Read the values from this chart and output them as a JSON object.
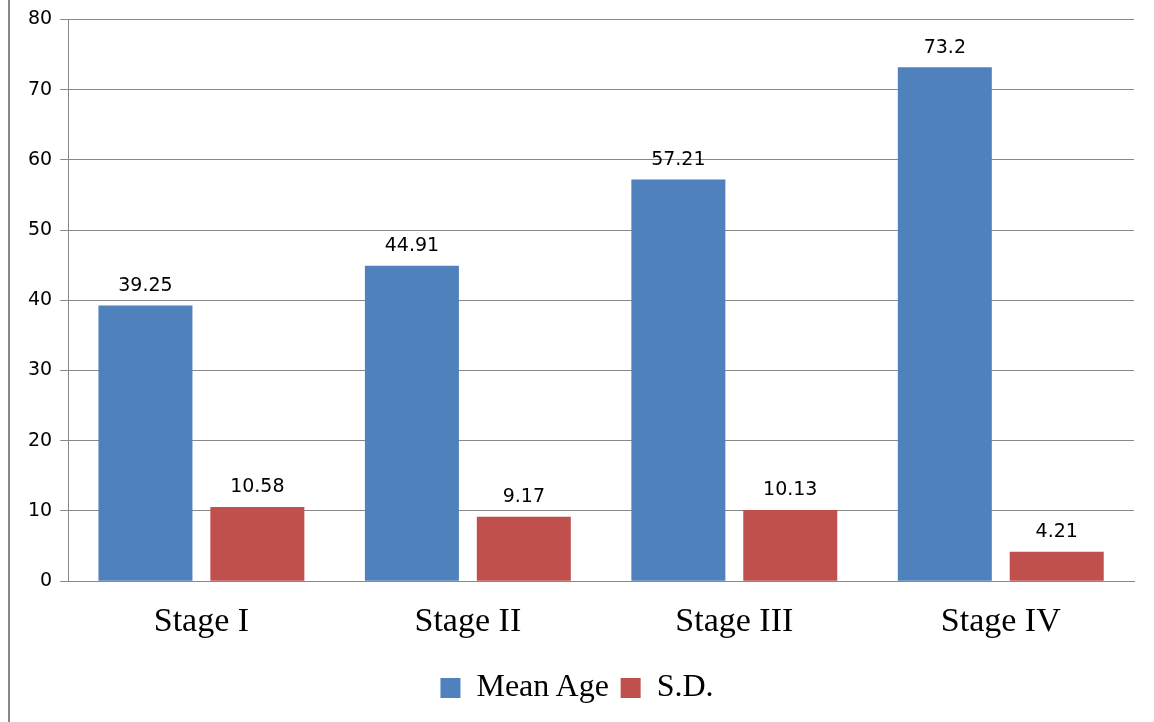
{
  "chart_data": {
    "type": "bar",
    "categories": [
      "Stage I",
      "Stage II",
      "Stage III",
      "Stage IV"
    ],
    "series": [
      {
        "name": "Mean Age",
        "color": "#4f81bd",
        "values": [
          39.25,
          44.91,
          57.21,
          73.2
        ]
      },
      {
        "name": "S.D.",
        "color": "#c0504d",
        "values": [
          10.58,
          9.17,
          10.13,
          4.21
        ]
      }
    ],
    "ylim": [
      0,
      80
    ],
    "yticks": [
      0,
      10,
      20,
      30,
      40,
      50,
      60,
      70,
      80
    ],
    "grid": "y",
    "legend": "bottom",
    "data_labels": true
  }
}
